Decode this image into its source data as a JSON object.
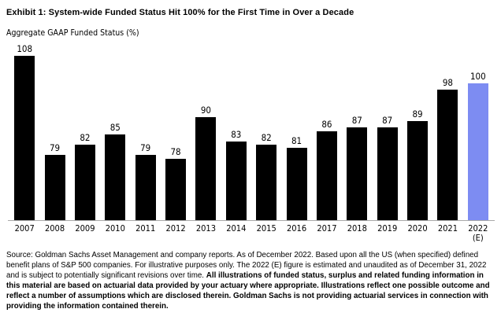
{
  "title": "Exhibit 1: System-wide Funded Status Hit 100% for the First Time in Over a Decade",
  "subtitle": "Aggregate GAAP Funded Status (%)",
  "chart_data": {
    "type": "bar",
    "title": "Aggregate GAAP Funded Status (%)",
    "categories": [
      "2007",
      "2008",
      "2009",
      "2010",
      "2011",
      "2012",
      "2013",
      "2014",
      "2015",
      "2016",
      "2017",
      "2018",
      "2019",
      "2020",
      "2021",
      "2022 (E)"
    ],
    "values": [
      108,
      79,
      82,
      85,
      79,
      78,
      90,
      83,
      82,
      81,
      86,
      87,
      87,
      89,
      98,
      100
    ],
    "xlabel": "",
    "ylabel": "",
    "ylim": [
      60,
      110
    ],
    "grid": false,
    "legend": false,
    "value_labels": true,
    "bar_color": "#000000",
    "highlight_color": "#7d8cf2",
    "highlight_index": 15,
    "axis_line_color": "#a9a9a9"
  },
  "footer": {
    "normal_text": "Source: Goldman Sachs Asset Management and company reports. As of December 2022. Based upon all the US (when specified) defined benefit plans of S&P 500 companies. For illustrative purposes only. The 2022 (E) figure is estimated and unaudited as of December 31, 2022 and is subject to potentially significant revisions over time. ",
    "bold_text": "All illustrations of funded status, surplus and related funding information in this material are based on actuarial data provided by your actuary where appropriate. Illustrations reflect one possible outcome and reflect a number of assumptions which are disclosed therein. Goldman Sachs is not providing actuarial services in connection with providing the information contained therein."
  }
}
